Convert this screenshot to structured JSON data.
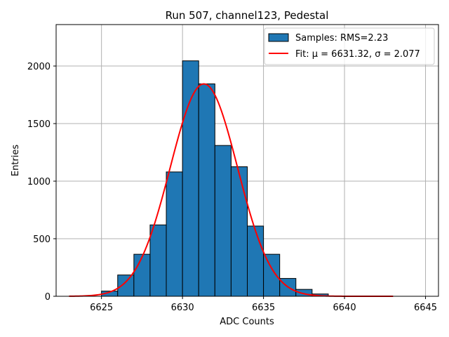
{
  "chart_data": {
    "type": "bar",
    "title": "Run 507, channel123, Pedestal",
    "xlabel": "ADC Counts",
    "ylabel": "Entries",
    "xlim": [
      6622.2,
      6645.8
    ],
    "ylim": [
      0,
      2360
    ],
    "xticks": [
      6625,
      6630,
      6635,
      6640,
      6645
    ],
    "yticks": [
      0,
      500,
      1000,
      1500,
      2000
    ],
    "grid": true,
    "legend_position": "top-right",
    "histogram": {
      "name": "Samples: RMS=2.23",
      "color": "#1f77b4",
      "bin_width": 1,
      "bin_starts": [
        6625,
        6626,
        6627,
        6628,
        6629,
        6630,
        6631,
        6632,
        6633,
        6634,
        6635,
        6636,
        6637,
        6638
      ],
      "values": [
        45,
        185,
        365,
        620,
        1080,
        2045,
        1845,
        1310,
        1125,
        610,
        365,
        155,
        60,
        20
      ]
    },
    "fit": {
      "name": "Fit: μ = 6631.32, σ = 2.077",
      "color": "#ff0000",
      "mu": 6631.32,
      "sigma": 2.077,
      "amplitude": 1845,
      "x_range": [
        6623,
        6643
      ]
    }
  }
}
